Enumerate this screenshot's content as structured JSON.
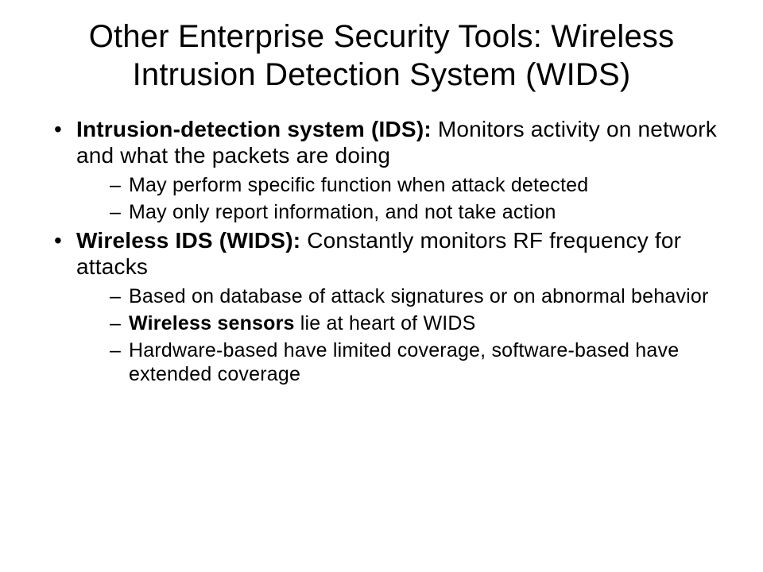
{
  "slide": {
    "title": "Other Enterprise Security Tools: Wireless Intrusion Detection System (WIDS)",
    "bullets": [
      {
        "lead_bold": "Intrusion-detection system (IDS): ",
        "lead_rest": "Monitors activity on network and what the packets are doing",
        "subs": [
          {
            "text": "May perform specific function when attack detected"
          },
          {
            "text": "May only report information, and not take action"
          }
        ]
      },
      {
        "lead_bold": "Wireless IDS (WIDS): ",
        "lead_rest": "Constantly monitors RF frequency for attacks",
        "subs": [
          {
            "text": "Based on database of attack signatures or on abnormal behavior"
          },
          {
            "bold_prefix": "Wireless sensors ",
            "text_after": "lie at heart of WIDS"
          },
          {
            "text": "Hardware-based have limited coverage, software-based have extended coverage"
          }
        ]
      }
    ]
  },
  "style": {
    "background_color": "#ffffff",
    "text_color": "#000000",
    "title_fontsize": 40,
    "bullet_fontsize": 28,
    "sub_fontsize": 25,
    "font_family": "Arial"
  }
}
